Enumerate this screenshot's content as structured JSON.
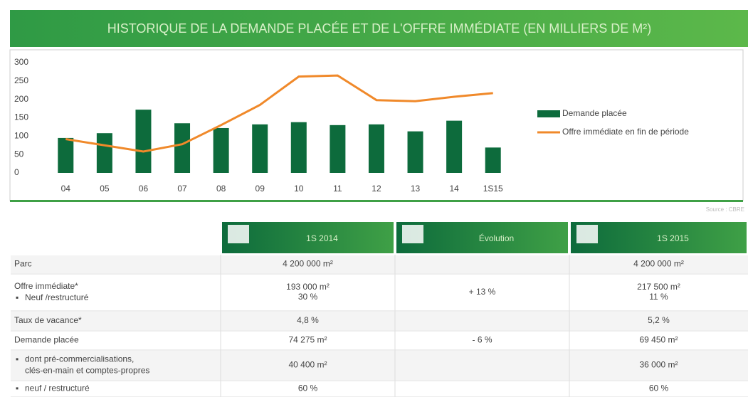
{
  "chart_data": {
    "type": "bar-line",
    "title": "HISTORIQUE DE LA DEMANDE PLACÉE ET DE L'OFFRE IMMÉDIATE (EN MILLIERS DE M²)",
    "categories": [
      "04",
      "05",
      "06",
      "07",
      "08",
      "09",
      "10",
      "11",
      "12",
      "13",
      "14",
      "1S15"
    ],
    "series": [
      {
        "name": "Demande placée",
        "type": "bar",
        "color": "#0d6b3c",
        "values": [
          95,
          108,
          172,
          135,
          122,
          132,
          138,
          130,
          132,
          113,
          142,
          69
        ]
      },
      {
        "name": "Offre immédiate en fin de période",
        "type": "line",
        "color": "#f0892a",
        "values": [
          92,
          75,
          58,
          78,
          130,
          185,
          262,
          265,
          198,
          195,
          207,
          217
        ]
      }
    ],
    "ylim": [
      0,
      300
    ],
    "yticks": [
      0,
      50,
      100,
      150,
      200,
      250,
      300
    ],
    "legend": "right",
    "source": "Source : CBRE"
  },
  "table": {
    "headers": [
      "1S 2014",
      "Évolution",
      "1S 2015"
    ],
    "rows": [
      {
        "label": [
          "Parc"
        ],
        "cells": [
          [
            "4 200 000 m²"
          ],
          [],
          [
            "4 200 000 m²"
          ]
        ]
      },
      {
        "label": [
          "Offre immédiate*",
          "Neuf /restructuré"
        ],
        "cells": [
          [
            "193 000 m²",
            "30 %"
          ],
          [
            "+ 13 %"
          ],
          [
            "217 500 m²",
            "11 %"
          ]
        ]
      },
      {
        "label": [
          "Taux de vacance*"
        ],
        "cells": [
          [
            "4,8 %"
          ],
          [],
          [
            "5,2 %"
          ]
        ]
      },
      {
        "label": [
          "Demande placée"
        ],
        "cells": [
          [
            "74 275 m²"
          ],
          [
            "- 6 %"
          ],
          [
            "69 450 m²"
          ]
        ]
      },
      {
        "label": [
          "dont pré-commercialisations,",
          "clés-en-main  et comptes-propres"
        ],
        "cells": [
          [
            "40 400 m²"
          ],
          [],
          [
            "36 000 m²"
          ]
        ]
      },
      {
        "label": [
          "neuf / restructuré"
        ],
        "cells": [
          [
            "60 %"
          ],
          [],
          [
            "60 %"
          ]
        ]
      }
    ]
  }
}
